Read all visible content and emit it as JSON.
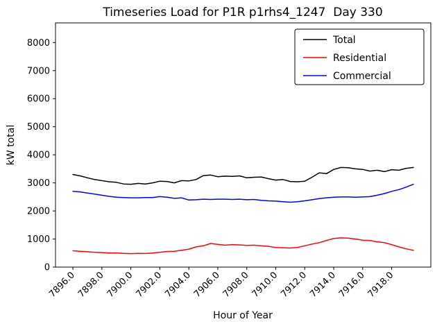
{
  "chart_data": {
    "type": "line",
    "title": "Timeseries Load for P1R p1rhs4_1247  Day 330",
    "xlabel": "Hour of Year",
    "ylabel": "kW total",
    "xlim": [
      7894.8,
      7920.7
    ],
    "ylim": [
      0,
      8700
    ],
    "grid": false,
    "legend_position": "upper right",
    "xticks": [
      7896,
      7898,
      7900,
      7902,
      7904,
      7906,
      7908,
      7910,
      7912,
      7914,
      7916,
      7918
    ],
    "xtick_labels": [
      "7896.0",
      "7898.0",
      "7900.0",
      "7902.0",
      "7904.0",
      "7906.0",
      "7908.0",
      "7910.0",
      "7912.0",
      "7914.0",
      "7916.0",
      "7918.0"
    ],
    "yticks": [
      0,
      1000,
      2000,
      3000,
      4000,
      5000,
      6000,
      7000,
      8000
    ],
    "ytick_labels": [
      "0",
      "1000",
      "2000",
      "3000",
      "4000",
      "5000",
      "6000",
      "7000",
      "8000"
    ],
    "x": [
      7896.0,
      7896.5,
      7897.0,
      7897.5,
      7898.0,
      7898.5,
      7899.0,
      7899.5,
      7900.0,
      7900.5,
      7901.0,
      7901.5,
      7902.0,
      7902.5,
      7903.0,
      7903.5,
      7904.0,
      7904.5,
      7905.0,
      7905.5,
      7906.0,
      7906.5,
      7907.0,
      7907.5,
      7908.0,
      7908.5,
      7909.0,
      7909.5,
      7910.0,
      7910.5,
      7911.0,
      7911.5,
      7912.0,
      7912.5,
      7913.0,
      7913.5,
      7914.0,
      7914.5,
      7915.0,
      7915.5,
      7916.0,
      7916.5,
      7917.0,
      7917.5,
      7918.0,
      7918.5,
      7919.0,
      7919.5
    ],
    "series": [
      {
        "name": "Total",
        "color": "#000000",
        "values": [
          3300,
          3250,
          3180,
          3120,
          3080,
          3040,
          3020,
          2960,
          2950,
          2980,
          2960,
          3000,
          3060,
          3050,
          3000,
          3080,
          3070,
          3120,
          3260,
          3280,
          3220,
          3240,
          3230,
          3250,
          3180,
          3200,
          3210,
          3150,
          3100,
          3120,
          3050,
          3040,
          3060,
          3200,
          3360,
          3330,
          3480,
          3550,
          3540,
          3500,
          3480,
          3420,
          3450,
          3400,
          3470,
          3450,
          3520,
          3550
        ]
      },
      {
        "name": "Residential",
        "color": "#ff0000",
        "values": [
          580,
          560,
          545,
          530,
          520,
          500,
          505,
          490,
          480,
          490,
          485,
          500,
          530,
          555,
          560,
          600,
          640,
          720,
          760,
          840,
          810,
          780,
          800,
          790,
          770,
          780,
          760,
          740,
          700,
          690,
          680,
          700,
          760,
          820,
          870,
          950,
          1020,
          1040,
          1030,
          1000,
          960,
          950,
          900,
          870,
          800,
          720,
          650,
          600
        ]
      },
      {
        "name": "Commercial",
        "color": "#0000ff",
        "values": [
          2700,
          2680,
          2640,
          2600,
          2560,
          2520,
          2490,
          2480,
          2470,
          2470,
          2480,
          2480,
          2510,
          2490,
          2450,
          2470,
          2390,
          2400,
          2420,
          2410,
          2420,
          2420,
          2410,
          2420,
          2400,
          2410,
          2380,
          2360,
          2350,
          2330,
          2310,
          2330,
          2360,
          2400,
          2440,
          2470,
          2490,
          2500,
          2500,
          2490,
          2500,
          2510,
          2560,
          2620,
          2700,
          2760,
          2850,
          2950
        ]
      }
    ]
  }
}
